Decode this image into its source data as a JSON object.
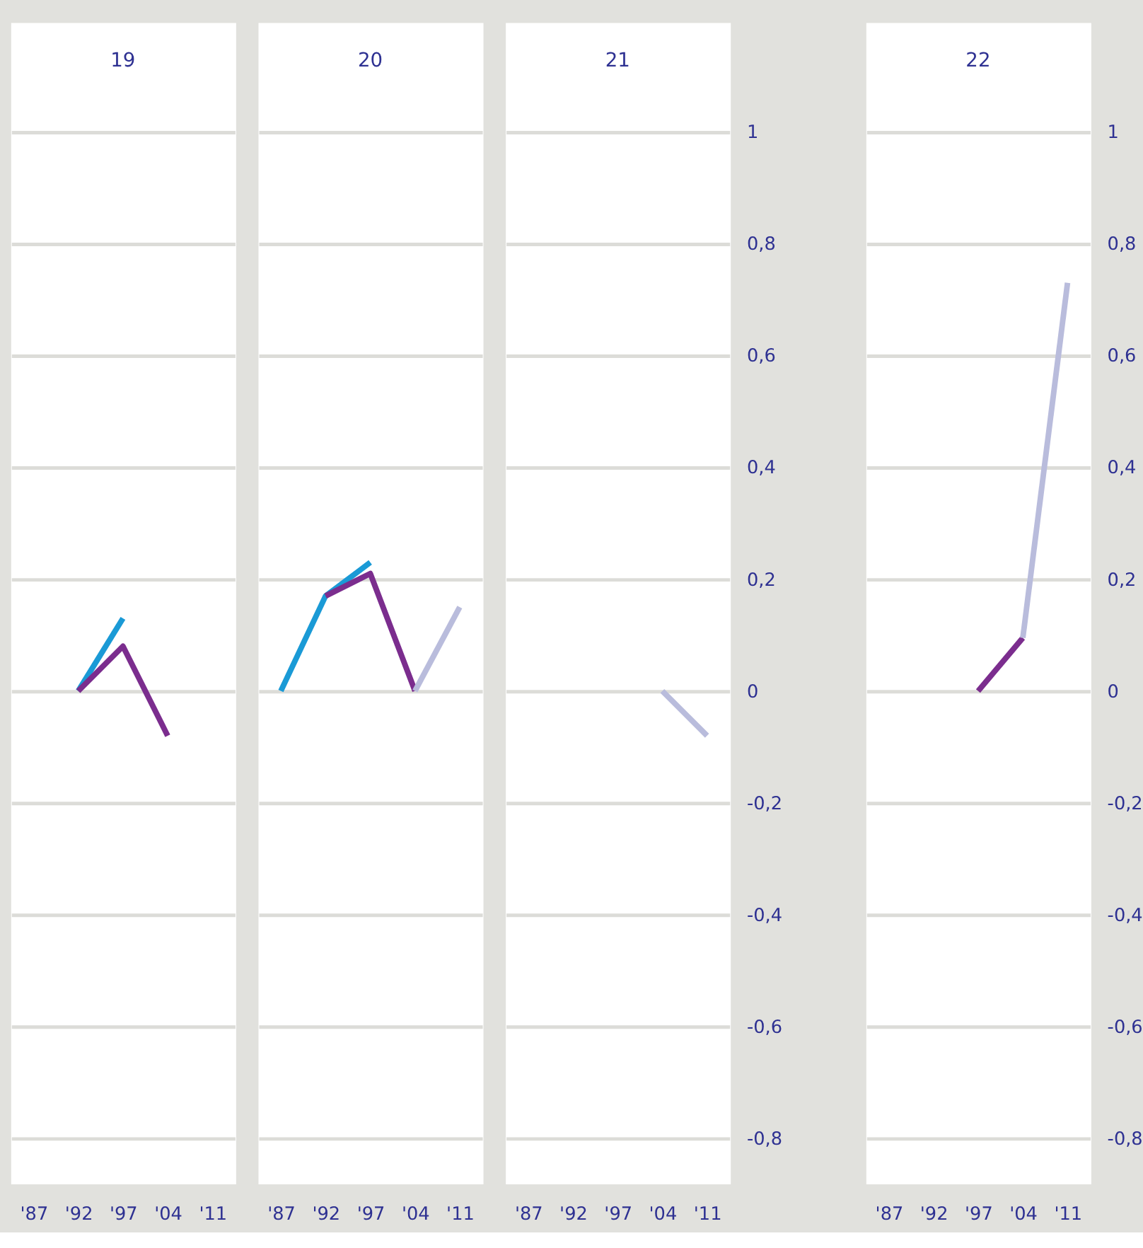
{
  "chart_data": [
    {
      "type": "line",
      "title": "19",
      "categories": [
        "'87",
        "'92",
        "'97",
        "'04",
        "'11"
      ],
      "series": [
        {
          "color": "#1a9ad6",
          "values": [
            null,
            0,
            0.13,
            null,
            null
          ]
        },
        {
          "color": "#7b2d8e",
          "values": [
            null,
            0,
            0.08,
            -0.08,
            null
          ]
        }
      ],
      "ylim": [
        -0.88,
        1.195
      ],
      "yticks": [
        -0.8,
        -0.6,
        -0.4,
        -0.2,
        0,
        0.2,
        0.4,
        0.6,
        0.8,
        1
      ],
      "grid": "y",
      "tick_labels": "x",
      "legend": false
    },
    {
      "type": "line",
      "title": "20",
      "categories": [
        "'87",
        "'92",
        "'97",
        "'04",
        "'11"
      ],
      "series": [
        {
          "color": "#1a9ad6",
          "values": [
            0,
            0.17,
            0.23,
            null,
            null
          ]
        },
        {
          "color": "#7b2d8e",
          "values": [
            null,
            0.17,
            0.21,
            0,
            null
          ]
        },
        {
          "color": "#b9bcdc",
          "values": [
            null,
            null,
            null,
            0,
            0.15
          ]
        }
      ],
      "ylim": [
        -0.88,
        1.195
      ],
      "yticks": [
        -0.8,
        -0.6,
        -0.4,
        -0.2,
        0,
        0.2,
        0.4,
        0.6,
        0.8,
        1
      ],
      "grid": "y",
      "tick_labels": "x",
      "legend": false
    },
    {
      "type": "line",
      "title": "21",
      "categories": [
        "'87",
        "'92",
        "'97",
        "'04",
        "'11"
      ],
      "series": [
        {
          "color": "#b9bcdc",
          "values": [
            null,
            null,
            null,
            0,
            -0.08
          ]
        }
      ],
      "ylim": [
        -0.88,
        1.195
      ],
      "yticks": [
        {
          "value": -0.8,
          "label": "-0,8"
        },
        {
          "value": -0.6,
          "label": "-0,6"
        },
        {
          "value": -0.4,
          "label": "-0,4"
        },
        {
          "value": -0.2,
          "label": "-0,2"
        },
        0,
        {
          "value": 0.2,
          "label": "0,2"
        },
        {
          "value": 0.4,
          "label": "0,4"
        },
        {
          "value": 0.6,
          "label": "0,6"
        },
        {
          "value": 0.8,
          "label": "0,8"
        },
        1
      ],
      "grid": "y",
      "legend": false
    },
    {
      "type": "line",
      "title": "22",
      "categories": [
        "'87",
        "'92",
        "'97",
        "'04",
        "'11"
      ],
      "series": [
        {
          "color": "#7b2d8e",
          "values": [
            null,
            null,
            0,
            0.095,
            null
          ]
        },
        {
          "color": "#b9bcdc",
          "values": [
            null,
            null,
            null,
            0.095,
            0.73
          ]
        }
      ],
      "ylim": [
        -0.88,
        1.195
      ],
      "yticks": [
        {
          "value": -0.8,
          "label": "-0,8"
        },
        {
          "value": -0.6,
          "label": "-0,6"
        },
        {
          "value": -0.4,
          "label": "-0,4"
        },
        {
          "value": -0.2,
          "label": "-0,2"
        },
        0,
        {
          "value": 0.2,
          "label": "0,2"
        },
        {
          "value": 0.4,
          "label": "0,4"
        },
        {
          "value": 0.6,
          "label": "0,6"
        },
        {
          "value": 0.8,
          "label": "0,8"
        },
        1
      ],
      "grid": "y",
      "legend": false
    }
  ]
}
